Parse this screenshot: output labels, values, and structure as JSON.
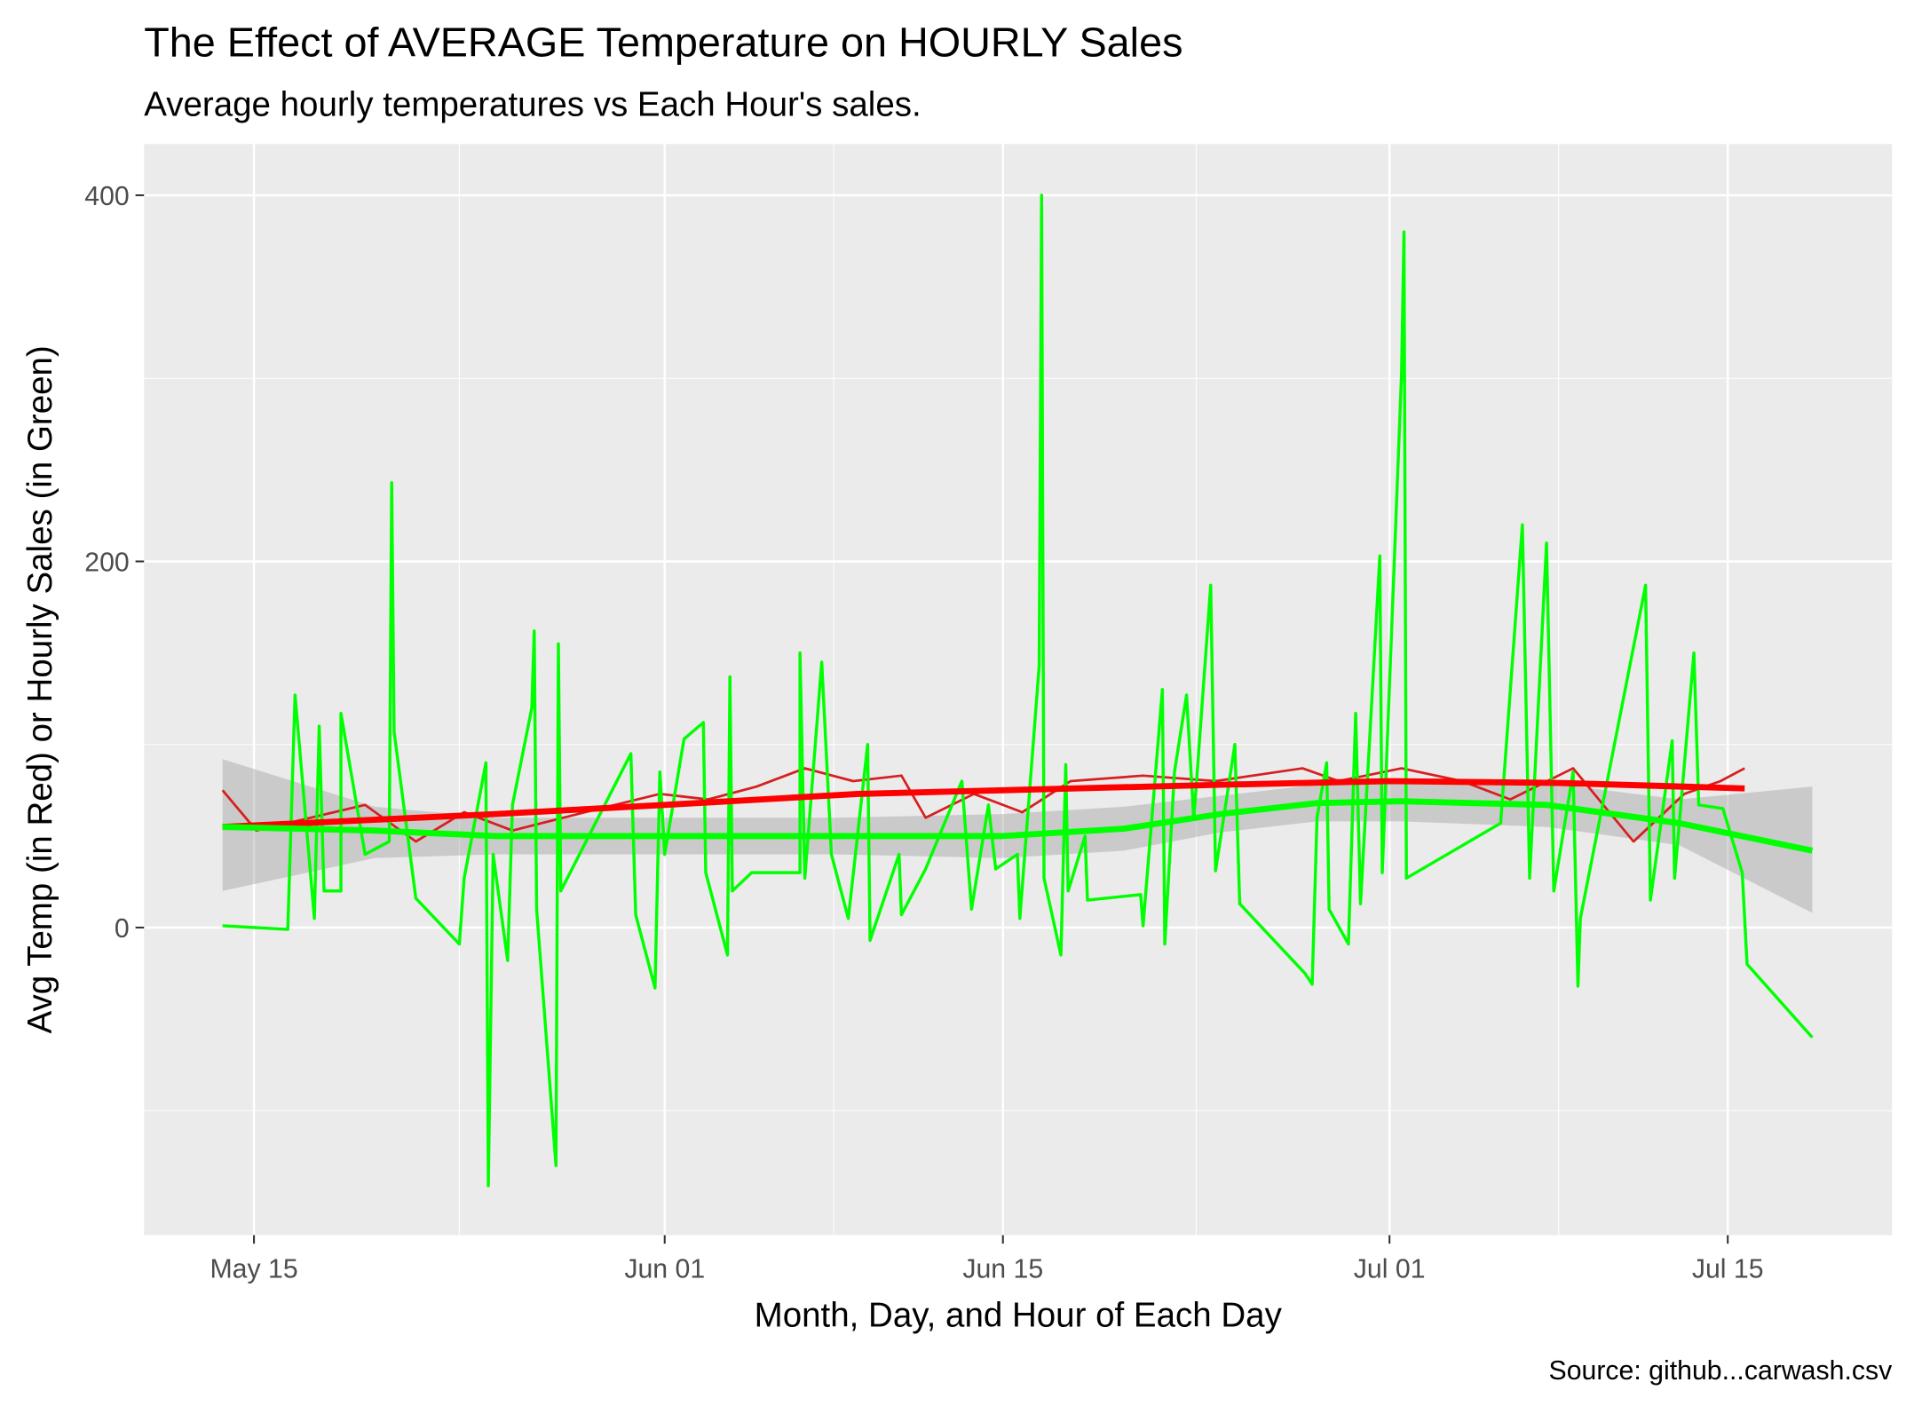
{
  "chart_data": {
    "type": "line",
    "title": "The Effect of AVERAGE Temperature on HOURLY Sales",
    "subtitle": "Average hourly temperatures vs Each Hour's sales.",
    "x_label": "Month, Day, and Hour of Each Day",
    "y_label": "Avg Temp (in Red) or Hourly Sales (in Green)",
    "caption": "Source: github...carwash.csv",
    "xlim": [
      130.45,
      202.8
    ],
    "ylim": [
      -168,
      428
    ],
    "xticks": [
      {
        "value": 135,
        "label": "May 15"
      },
      {
        "value": 152,
        "label": "Jun 01"
      },
      {
        "value": 166,
        "label": "Jun 15"
      },
      {
        "value": 182,
        "label": "Jul 01"
      },
      {
        "value": 196,
        "label": "Jul 15"
      }
    ],
    "yticks": [
      0,
      200,
      400
    ],
    "x_minor_ticks": [
      143.5,
      159,
      174,
      189
    ],
    "y_minor_ticks": [
      -100,
      100,
      300
    ],
    "grid": true,
    "series": [
      {
        "type": "ribbon",
        "color": "#999999",
        "x": [
          133.7,
          140,
          145,
          152,
          159,
          166,
          171,
          175,
          179,
          182.5,
          188.5,
          194,
          199.5
        ],
        "lower": [
          20,
          38,
          40,
          40,
          40,
          38,
          42,
          52,
          58,
          58,
          55,
          45,
          8
        ],
        "upper": [
          92,
          66,
          60,
          60,
          60,
          62,
          66,
          72,
          78,
          80,
          79,
          70,
          77
        ]
      },
      {
        "type": "line",
        "color": "#d62020",
        "width": 2,
        "x": [
          133.7,
          135.1,
          139.6,
          141.7,
          143.7,
          145.7,
          148.7,
          151.8,
          153.8,
          155.8,
          157.8,
          159.8,
          161.8,
          162.8,
          164.8,
          166.8,
          168.8,
          171.8,
          174.8,
          178.4,
          179.9,
          182.5,
          185,
          187,
          189.6,
          192.1,
          194.2,
          195.7,
          196.7
        ],
        "values": [
          75,
          53,
          67,
          47,
          63,
          53,
          63,
          73,
          70,
          77,
          87,
          80,
          83,
          60,
          73,
          63,
          80,
          83,
          80,
          87,
          80,
          87,
          80,
          70,
          87,
          47,
          73,
          80,
          87
        ]
      },
      {
        "type": "line",
        "color": "#00ff00",
        "width": 2.5,
        "x": [
          133.7,
          136.4,
          136.7,
          137.5,
          137.7,
          137.9,
          138.6,
          138.6,
          139.6,
          140.6,
          140.7,
          140.8,
          141.7,
          143.5,
          143.7,
          144.6,
          144.7,
          144.9,
          145.5,
          145.7,
          146.5,
          146.6,
          146.7,
          147.5,
          147.6,
          147.7,
          150.6,
          150.8,
          151.6,
          151.8,
          152,
          152.8,
          153.6,
          153.7,
          154.6,
          154.7,
          154.8,
          155.6,
          157.6,
          157.6,
          157.8,
          158.5,
          158.9,
          159.6,
          160.4,
          160.5,
          161.7,
          161.8,
          162.8,
          164.3,
          164.7,
          165.4,
          165.7,
          166.6,
          166.7,
          167.5,
          167.6,
          167.7,
          168.4,
          168.6,
          168.7,
          169.4,
          169.5,
          171.7,
          171.8,
          172.6,
          172.7,
          173.1,
          173.6,
          173.9,
          174.6,
          174.8,
          175.6,
          175.8,
          178.5,
          178.8,
          179,
          179.4,
          179.5,
          180.3,
          180.6,
          180.8,
          181.6,
          181.7,
          182.5,
          182.6,
          182.7,
          186.6,
          187.5,
          187.8,
          188.5,
          188.8,
          189.6,
          189.8,
          189.9,
          192.6,
          192.8,
          193.7,
          193.8,
          194.6,
          194.8,
          195.8,
          196.6,
          196.8,
          199.5
        ],
        "values": [
          1,
          -1,
          127,
          5,
          110,
          20,
          20,
          117,
          40,
          47,
          243,
          107,
          16,
          -9,
          27,
          90,
          -141,
          40,
          -18,
          67,
          120,
          162,
          10,
          -130,
          155,
          20,
          95,
          7,
          -33,
          85,
          40,
          103,
          112,
          30,
          -15,
          137,
          20,
          30,
          30,
          150,
          27,
          145,
          40,
          5,
          100,
          -7,
          40,
          7,
          32,
          80,
          10,
          67,
          32,
          40,
          5,
          143,
          400,
          27,
          -15,
          89,
          20,
          50,
          15,
          18,
          1,
          130,
          -9,
          85,
          127,
          59,
          187,
          31,
          100,
          13,
          -25,
          -31,
          60,
          90,
          10,
          -9,
          117,
          13,
          203,
          30,
          303,
          380,
          27,
          57,
          220,
          27,
          210,
          20,
          85,
          -32,
          5,
          187,
          15,
          102,
          27,
          150,
          67,
          65,
          30,
          -20,
          -60
        ]
      },
      {
        "type": "line",
        "color": "#ff0000",
        "width": 5,
        "x": [
          133.7,
          145,
          152,
          160,
          166,
          175,
          182,
          189,
          196.7
        ],
        "values": [
          55,
          62,
          67,
          73,
          75,
          78,
          80,
          79,
          76
        ]
      },
      {
        "type": "line",
        "color": "#00ff00",
        "width": 5,
        "x": [
          133.7,
          140,
          145,
          152,
          159,
          166,
          171,
          175,
          179,
          182.5,
          188.5,
          194,
          199.5
        ],
        "values": [
          55,
          53,
          50,
          50,
          50,
          50,
          54,
          62,
          68,
          69,
          67,
          57,
          42
        ]
      }
    ]
  }
}
